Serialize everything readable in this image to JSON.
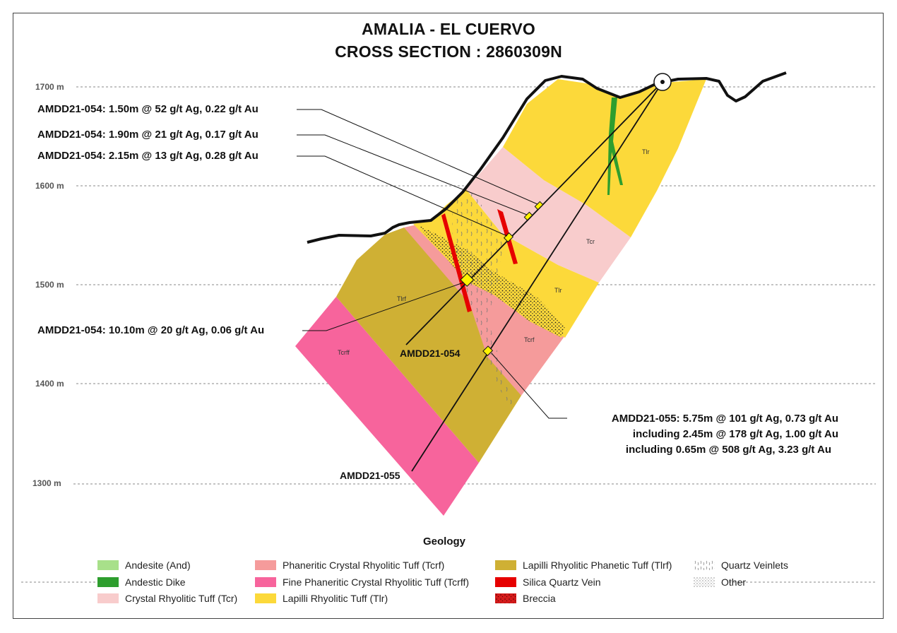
{
  "title": {
    "line1": "AMALIA - EL CUERVO",
    "line2": "CROSS SECTION : 2860309N"
  },
  "elevations": [
    "1700 m",
    "1600 m",
    "1500 m",
    "1400 m",
    "1300 m"
  ],
  "unit_labels": {
    "tlr_upper": "Tlr",
    "tcr_right": "Tcr",
    "tlr_middle": "Tlr",
    "tlrf": "Tlrf",
    "tcrf": "Tcrf",
    "tcrff": "Tcrff"
  },
  "callouts": {
    "c1": "AMDD21-054:  1.50m @ 52 g/t Ag, 0.22 g/t Au",
    "c2": "AMDD21-054:  1.90m @ 21 g/t Ag, 0.17 g/t Au",
    "c3": "AMDD21-054:  2.15m @ 13 g/t Ag, 0.28 g/t Au",
    "c4": "AMDD21-054:  10.10m @ 20 g/t Ag, 0.06 g/t Au",
    "c5_line1": "AMDD21-055:  5.75m @ 101 g/t Ag, 0.73 g/t Au",
    "c5_line2": "including  2.45m @ 178 g/t Ag, 1.00 g/t Au",
    "c5_line3": "including  0.65m @ 508 g/t Ag, 3.23 g/t Au"
  },
  "drillholes": {
    "hole_054": "AMDD21-054",
    "hole_055": "AMDD21-055"
  },
  "legend": {
    "title": "Geology",
    "items": [
      {
        "label": "Andesite (And)",
        "color": "#a8e08a"
      },
      {
        "label": "Andestic Dike",
        "color": "#2e9e2e"
      },
      {
        "label": "Crystal Rhyolitic Tuff (Tcr)",
        "color": "#f8cccc"
      },
      {
        "label": "Phaneritic Crystal Rhyolitic Tuff (Tcrf)",
        "color": "#f59b9b"
      },
      {
        "label": "Fine Phaneritic Crystal Rhyolitic Tuff (Tcrff)",
        "color": "#f7649c"
      },
      {
        "label": "Lapilli Rhyolitic Tuff (Tlr)",
        "color": "#fcd93a"
      },
      {
        "label": "Lapilli Rhyolitic Phanetic Tuff (Tlrf)",
        "color": "#cfb034"
      },
      {
        "label": "Silica Quartz Vein",
        "color": "#e60000"
      },
      {
        "label": "Breccia",
        "color": "#d41a1a"
      },
      {
        "label": "Quartz Veinlets",
        "color": "#cccccc"
      },
      {
        "label": "Other",
        "color": "#bbbbbb"
      }
    ]
  }
}
